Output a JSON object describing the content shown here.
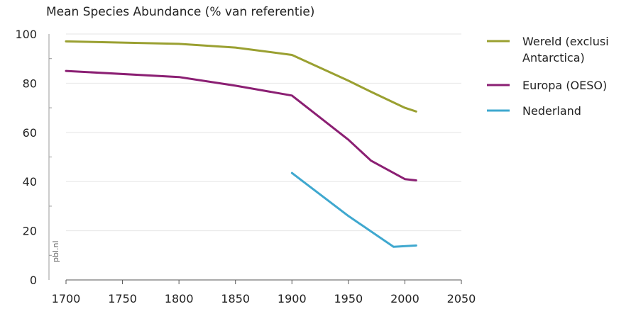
{
  "chart_data": {
    "type": "line",
    "title": "Mean Species Abundance (% van referentie)",
    "xlabel": "",
    "ylabel": "",
    "xlim": [
      1700,
      2050
    ],
    "ylim": [
      0,
      100
    ],
    "xticks": [
      1700,
      1750,
      1800,
      1850,
      1900,
      1950,
      2000,
      2050
    ],
    "yticks": [
      0,
      20,
      40,
      60,
      80,
      100
    ],
    "grid": "horizontal",
    "legend_position": "right",
    "watermark": "pbl.nl",
    "series": [
      {
        "name": "Wereld (exclusief Antarctica)",
        "legend_lines": [
          "Wereld (exclusi",
          "Antarctica)"
        ],
        "color": "#9aa031",
        "x": [
          1700,
          1800,
          1850,
          1900,
          1950,
          1970,
          2000,
          2010
        ],
        "y": [
          97,
          96,
          94.5,
          91.5,
          81,
          76.5,
          70,
          68.5
        ]
      },
      {
        "name": "Europa (OESO)",
        "legend_lines": [
          "Europa (OESO)"
        ],
        "color": "#8b1f73",
        "x": [
          1700,
          1800,
          1850,
          1900,
          1950,
          1970,
          2000,
          2010
        ],
        "y": [
          85,
          82.5,
          79,
          75,
          57,
          48.5,
          41,
          40.5
        ]
      },
      {
        "name": "Nederland",
        "legend_lines": [
          "Nederland"
        ],
        "color": "#3fa8cf",
        "x": [
          1900,
          1950,
          1990,
          2010
        ],
        "y": [
          43.5,
          26,
          13.5,
          14
        ]
      }
    ]
  }
}
